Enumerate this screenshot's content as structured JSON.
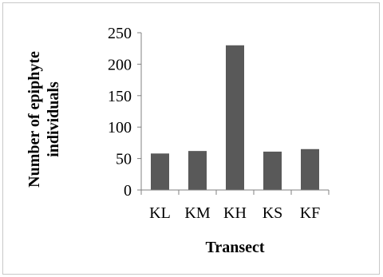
{
  "chart_data": {
    "type": "bar",
    "categories": [
      "KL",
      "KM",
      "KH",
      "KS",
      "KF"
    ],
    "values": [
      58,
      62,
      230,
      61,
      65
    ],
    "title": "",
    "xlabel": "Transect",
    "ylabel_line1": "Number of epiphyte",
    "ylabel_line2": "individuals",
    "ylim": [
      0,
      250
    ],
    "yticks": [
      "0",
      "50",
      "100",
      "150",
      "200",
      "250"
    ],
    "grid": false,
    "legend": "none",
    "bar_color": "#595959"
  }
}
